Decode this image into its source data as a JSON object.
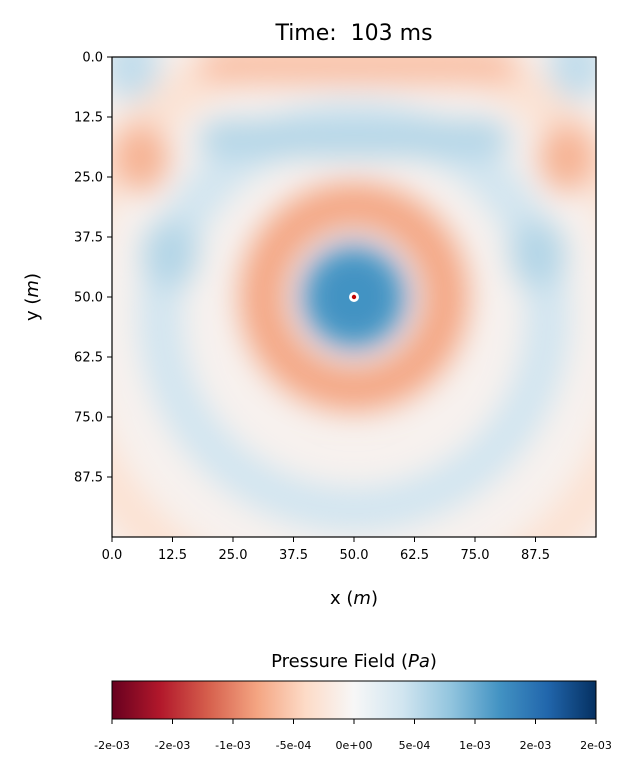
{
  "chart_data": {
    "type": "heatmap",
    "title": "Time:  103 ms",
    "xlabel": {
      "text": "x (",
      "var": "m",
      "close": ")"
    },
    "ylabel": {
      "text": "y (",
      "var": "m",
      "close": ")"
    },
    "xlim": [
      0,
      100
    ],
    "ylim": [
      0,
      100
    ],
    "y_inverted": true,
    "xticks": [
      0.0,
      12.5,
      25.0,
      37.5,
      50.0,
      62.5,
      75.0,
      87.5
    ],
    "xtick_labels": [
      "0.0",
      "12.5",
      "25.0",
      "37.5",
      "50.0",
      "62.5",
      "75.0",
      "87.5"
    ],
    "yticks": [
      0.0,
      12.5,
      25.0,
      37.5,
      50.0,
      62.5,
      75.0,
      87.5
    ],
    "ytick_labels": [
      "0.0",
      "12.5",
      "25.0",
      "37.5",
      "50.0",
      "62.5",
      "75.0",
      "87.5"
    ],
    "source": {
      "x": 50,
      "y": 50
    },
    "colormap": "RdBu",
    "colorbar": {
      "label": {
        "text": "Pressure Field (",
        "var": "Pa",
        "close": ")"
      },
      "orientation": "horizontal",
      "range": [
        -0.002,
        0.002
      ],
      "ticks": [
        -0.002,
        -0.0015,
        -0.001,
        -0.0005,
        0,
        0.0005,
        0.001,
        0.0015,
        0.002
      ],
      "tick_labels": [
        "-2e-03",
        "-2e-03",
        "-1e-03",
        "-5e-04",
        "0e+00",
        "5e-04",
        "1e-03",
        "2e-03",
        "2e-03"
      ]
    },
    "field_features": [
      {
        "kind": "band",
        "y": 2,
        "x_range": [
          18,
          84
        ],
        "value": -0.0006
      },
      {
        "kind": "blob",
        "x": 4,
        "y": 2,
        "value": 0.0005
      },
      {
        "kind": "blob",
        "x": 96,
        "y": 2,
        "value": 0.0005
      },
      {
        "kind": "band",
        "y": 17,
        "x_range": [
          18,
          82
        ],
        "value": 0.0006
      },
      {
        "kind": "blob",
        "x": 6,
        "y": 21,
        "value": -0.0007
      },
      {
        "kind": "blob",
        "x": 94,
        "y": 21,
        "value": -0.0007
      },
      {
        "kind": "ring",
        "x": 50,
        "y": 50,
        "r": 19,
        "value": -0.0008
      },
      {
        "kind": "blob",
        "x": 12,
        "y": 41,
        "value": 0.0006
      },
      {
        "kind": "blob",
        "x": 88,
        "y": 41,
        "value": 0.0006
      },
      {
        "kind": "core",
        "x": 50,
        "y": 50,
        "r": 10,
        "value": 0.0012
      },
      {
        "kind": "ring",
        "x": 50,
        "y": 54,
        "r": 40,
        "value": 0.0004
      },
      {
        "kind": "ring",
        "x": 50,
        "y": 56,
        "r": 60,
        "value": -0.0003
      }
    ]
  }
}
